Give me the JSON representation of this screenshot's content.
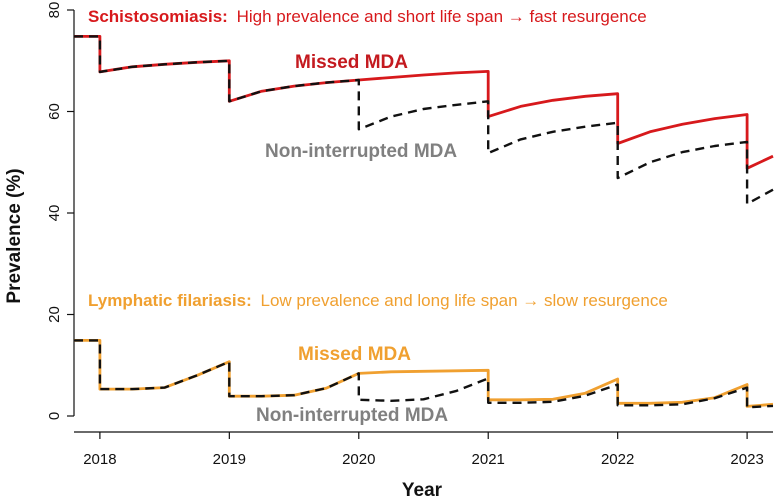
{
  "chart_data": {
    "type": "line",
    "xlabel": "Year",
    "ylabel": "Prevalence (%)",
    "xlim": [
      2017.8,
      2023.2
    ],
    "ylim": [
      0,
      80
    ],
    "xticks": [
      "2018",
      "2019",
      "2020",
      "2021",
      "2022",
      "2023"
    ],
    "yticks": [
      "0",
      "20",
      "40",
      "60",
      "80"
    ],
    "colors": {
      "schisto": "#d7191c",
      "lf": "#f0a030",
      "non_interrupted": "#111111",
      "label_gray": "#808080",
      "axis": "#111111"
    },
    "annotations": {
      "schisto_bold": "Schistosomiasis:",
      "schisto_rest": "High prevalence and short life span → fast resurgence",
      "lf_bold": "Lymphatic filariasis:",
      "lf_rest": "Low prevalence and long life span → slow resurgence",
      "schisto_missed": "Missed MDA",
      "schisto_non": "Non-interrupted MDA",
      "lf_missed": "Missed MDA",
      "lf_non": "Non-interrupted MDA"
    },
    "series": [
      {
        "name": "Schistosomiasis - Missed MDA",
        "color": "#d7191c",
        "style": "solid",
        "x": [
          2017.8,
          2018.0,
          2018.0,
          2018.25,
          2018.5,
          2018.75,
          2019.0,
          2019.0,
          2019.25,
          2019.5,
          2019.75,
          2020.0,
          2020.25,
          2020.5,
          2020.75,
          2021.0,
          2021.0,
          2021.25,
          2021.5,
          2021.75,
          2022.0,
          2022.0,
          2022.25,
          2022.5,
          2022.75,
          2023.0,
          2023.0,
          2023.2
        ],
        "y": [
          74.8,
          74.8,
          67.8,
          68.8,
          69.3,
          69.7,
          70.0,
          62.0,
          64.0,
          65.0,
          65.7,
          66.2,
          66.7,
          67.2,
          67.6,
          67.9,
          59.0,
          61.0,
          62.2,
          63.0,
          63.5,
          53.7,
          56.0,
          57.5,
          58.6,
          59.4,
          48.8,
          51.2
        ]
      },
      {
        "name": "Schistosomiasis - Non-interrupted MDA",
        "color": "#111111",
        "style": "dashed",
        "x": [
          2017.8,
          2018.0,
          2018.0,
          2018.25,
          2018.5,
          2018.75,
          2019.0,
          2019.0,
          2019.25,
          2019.5,
          2019.75,
          2020.0,
          2020.0,
          2020.25,
          2020.5,
          2020.75,
          2021.0,
          2021.0,
          2021.25,
          2021.5,
          2021.75,
          2022.0,
          2022.0,
          2022.25,
          2022.5,
          2022.75,
          2023.0,
          2023.0,
          2023.2
        ],
        "y": [
          74.8,
          74.8,
          67.8,
          68.8,
          69.3,
          69.7,
          70.0,
          62.0,
          64.0,
          65.0,
          65.7,
          66.2,
          56.5,
          59.0,
          60.5,
          61.3,
          62.0,
          51.8,
          54.5,
          56.0,
          57.0,
          57.8,
          46.9,
          50.0,
          52.0,
          53.2,
          54.0,
          41.8,
          44.6
        ]
      },
      {
        "name": "Lymphatic filariasis - Missed MDA",
        "color": "#f0a030",
        "style": "solid",
        "x": [
          2017.8,
          2018.0,
          2018.0,
          2018.25,
          2018.5,
          2018.75,
          2019.0,
          2019.0,
          2019.25,
          2019.5,
          2019.75,
          2020.0,
          2020.25,
          2020.5,
          2020.75,
          2021.0,
          2021.0,
          2021.25,
          2021.5,
          2021.75,
          2022.0,
          2022.0,
          2022.25,
          2022.5,
          2022.75,
          2023.0,
          2023.0,
          2023.2
        ],
        "y": [
          14.9,
          14.9,
          5.3,
          5.3,
          5.6,
          8.0,
          10.7,
          3.9,
          3.9,
          4.1,
          5.5,
          8.4,
          8.7,
          8.8,
          8.9,
          9.0,
          3.2,
          3.2,
          3.3,
          4.5,
          7.3,
          2.5,
          2.5,
          2.7,
          3.6,
          6.2,
          1.9,
          2.3
        ]
      },
      {
        "name": "Lymphatic filariasis - Non-interrupted MDA",
        "color": "#111111",
        "style": "dashed",
        "x": [
          2017.8,
          2018.0,
          2018.0,
          2018.25,
          2018.5,
          2018.75,
          2019.0,
          2019.0,
          2019.25,
          2019.5,
          2019.75,
          2020.0,
          2020.0,
          2020.25,
          2020.5,
          2020.75,
          2021.0,
          2021.0,
          2021.25,
          2021.5,
          2021.75,
          2022.0,
          2022.0,
          2022.25,
          2022.5,
          2022.75,
          2023.0,
          2023.0,
          2023.2
        ],
        "y": [
          14.9,
          14.9,
          5.3,
          5.3,
          5.6,
          8.0,
          10.7,
          3.9,
          3.9,
          4.1,
          5.5,
          8.4,
          3.2,
          3.0,
          3.3,
          4.9,
          7.4,
          2.6,
          2.6,
          2.8,
          4.0,
          6.2,
          2.1,
          2.1,
          2.3,
          3.5,
          5.6,
          1.7,
          2.0
        ]
      }
    ]
  }
}
